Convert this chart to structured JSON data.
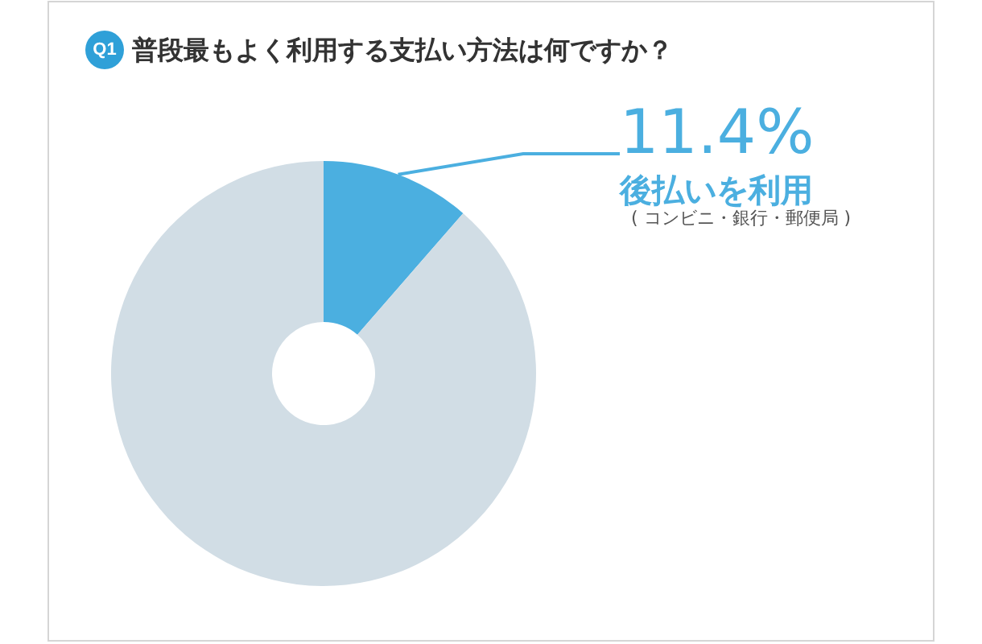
{
  "chart_data": {
    "type": "donut",
    "title": "Q1 普段最もよく利用する支払い方法は何ですか？",
    "categories": [
      "後払いを利用",
      null
    ],
    "values": [
      11.4,
      88.6
    ],
    "colors": [
      "#4bafe0",
      "#d1dde5"
    ],
    "value_labels": [
      "11.4%",
      null
    ],
    "annotations": [
      "( コンビニ・銀行・郵便局 )"
    ],
    "legend": false
  }
}
